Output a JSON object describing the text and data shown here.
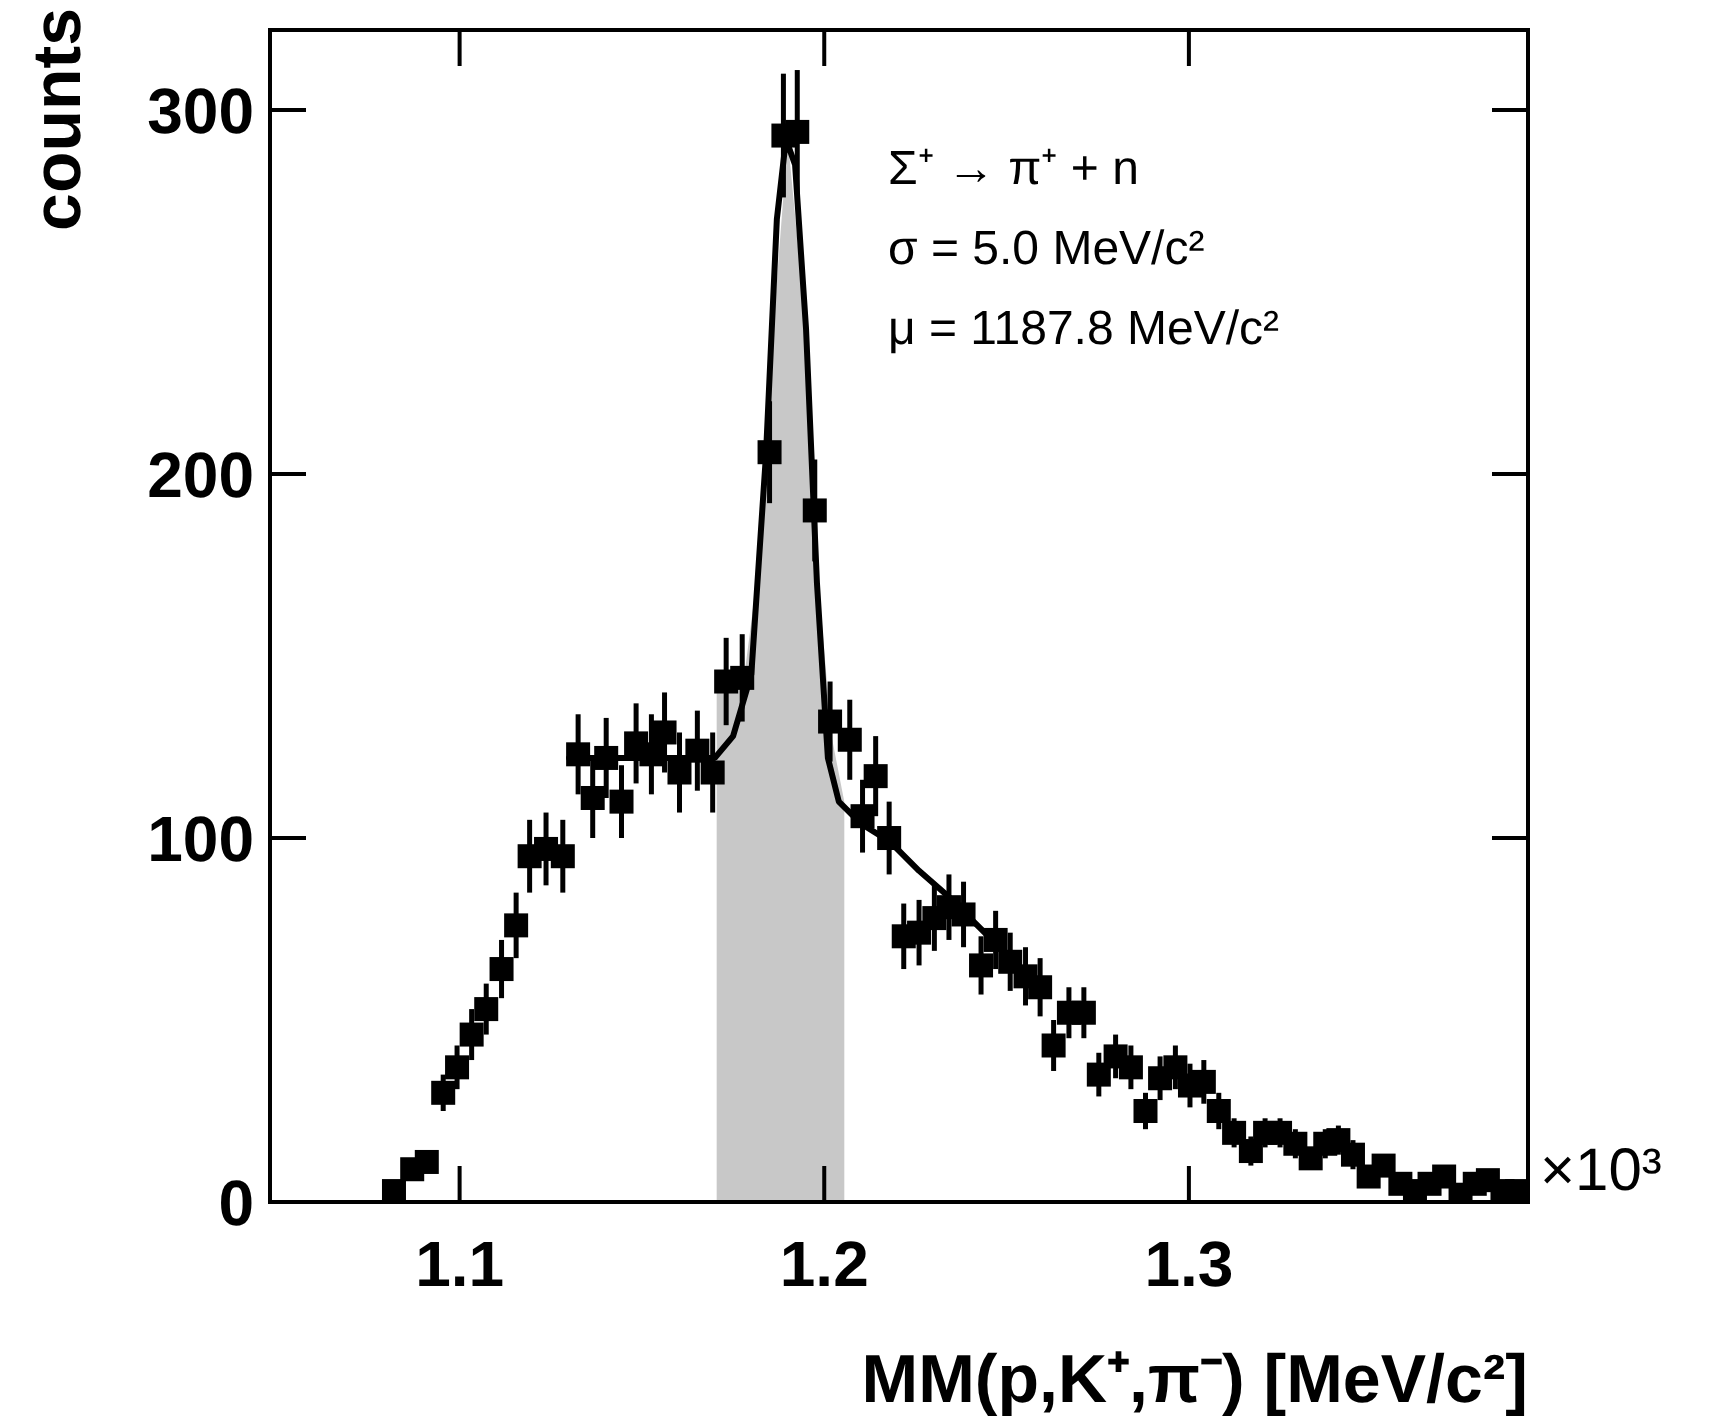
{
  "chart_data": {
    "type": "scatter",
    "xlabel": "MM(p,K⁺,π⁻) [MeV/c²]",
    "ylabel": "counts",
    "xlim": [
      1.048,
      1.393
    ],
    "xticks": [
      1.1,
      1.2,
      1.3
    ],
    "ylim": [
      0,
      322
    ],
    "yticks": [
      0,
      100,
      200,
      300
    ],
    "annotations": [
      "Σ⁺ → π⁺ + n",
      "σ = 5.0 MeV/c²",
      "μ = 1187.8 MeV/c²",
      "×10³"
    ],
    "series": [
      {
        "type": "area",
        "color": "#c8c8c8",
        "x": [
          1.1705,
          1.174,
          1.178,
          1.182,
          1.186,
          1.19,
          1.194,
          1.198,
          1.202,
          1.2055
        ],
        "values": [
          140,
          143,
          144,
          175,
          240,
          292,
          250,
          175,
          128,
          110
        ]
      },
      {
        "type": "line",
        "color": "#000000",
        "x": [
          1.13,
          1.15,
          1.17,
          1.175,
          1.18,
          1.184,
          1.187,
          1.1895,
          1.192,
          1.195,
          1.198,
          1.201,
          1.204,
          1.21,
          1.218,
          1.226,
          1.234,
          1.246
        ],
        "values": [
          122,
          122,
          122,
          128,
          145,
          205,
          270,
          292,
          285,
          240,
          170,
          122,
          110,
          104,
          99,
          91,
          84,
          72
        ]
      },
      {
        "marker": "square",
        "color": "#000000",
        "x": [
          1.082,
          1.087,
          1.091,
          1.0955,
          1.0993,
          1.1033,
          1.1073,
          1.1115,
          1.1155,
          1.1192,
          1.1237,
          1.1283,
          1.1325,
          1.1365,
          1.1402,
          1.1444,
          1.1484,
          1.1526,
          1.1562,
          1.1603,
          1.1652,
          1.1694,
          1.1731,
          1.1775,
          1.185,
          1.1888,
          1.1926,
          1.1974,
          1.2016,
          1.207,
          1.2105,
          1.2141,
          1.2178,
          1.2218,
          1.226,
          1.2302,
          1.2342,
          1.2382,
          1.243,
          1.247,
          1.251,
          1.2552,
          1.2592,
          1.2629,
          1.2671,
          1.2712,
          1.2753,
          1.2799,
          1.2841,
          1.2881,
          1.2921,
          1.2963,
          1.3003,
          1.3041,
          1.3082,
          1.3124,
          1.317,
          1.3209,
          1.325,
          1.3292,
          1.3334,
          1.3374,
          1.341,
          1.345,
          1.3493,
          1.3534,
          1.358,
          1.362,
          1.366,
          1.37,
          1.3745,
          1.3784,
          1.382,
          1.386,
          1.39
        ],
        "values": [
          3,
          9,
          11,
          30,
          37,
          46,
          53,
          64,
          76,
          95,
          97,
          95,
          123,
          111,
          122,
          110,
          126,
          123,
          129,
          118,
          124,
          118,
          143,
          144,
          206,
          293,
          294,
          190,
          132,
          127,
          106,
          117,
          100,
          73,
          74,
          78,
          81,
          79,
          65,
          72,
          66,
          62,
          59,
          43,
          52,
          52,
          35,
          40,
          37,
          25,
          34,
          37,
          32,
          33,
          25,
          19,
          14,
          19,
          19,
          16,
          12,
          16,
          17,
          13,
          7,
          10,
          5,
          3,
          5,
          7,
          2,
          5,
          6,
          3,
          3
        ],
        "errors": [
          2,
          3,
          3,
          5,
          6,
          7,
          7,
          8,
          9,
          10,
          10,
          10,
          11,
          11,
          11,
          10,
          11,
          11,
          11,
          11,
          11,
          11,
          12,
          12,
          14,
          17,
          17,
          14,
          11,
          11,
          10,
          11,
          10,
          9,
          9,
          9,
          9,
          9,
          8,
          8,
          8,
          8,
          8,
          7,
          7,
          7,
          6,
          6,
          6,
          5,
          6,
          6,
          6,
          6,
          5,
          4,
          4,
          4,
          4,
          4,
          3,
          4,
          4,
          4,
          3,
          3,
          2,
          2,
          2,
          3,
          1,
          2,
          2,
          2,
          2
        ]
      }
    ]
  }
}
